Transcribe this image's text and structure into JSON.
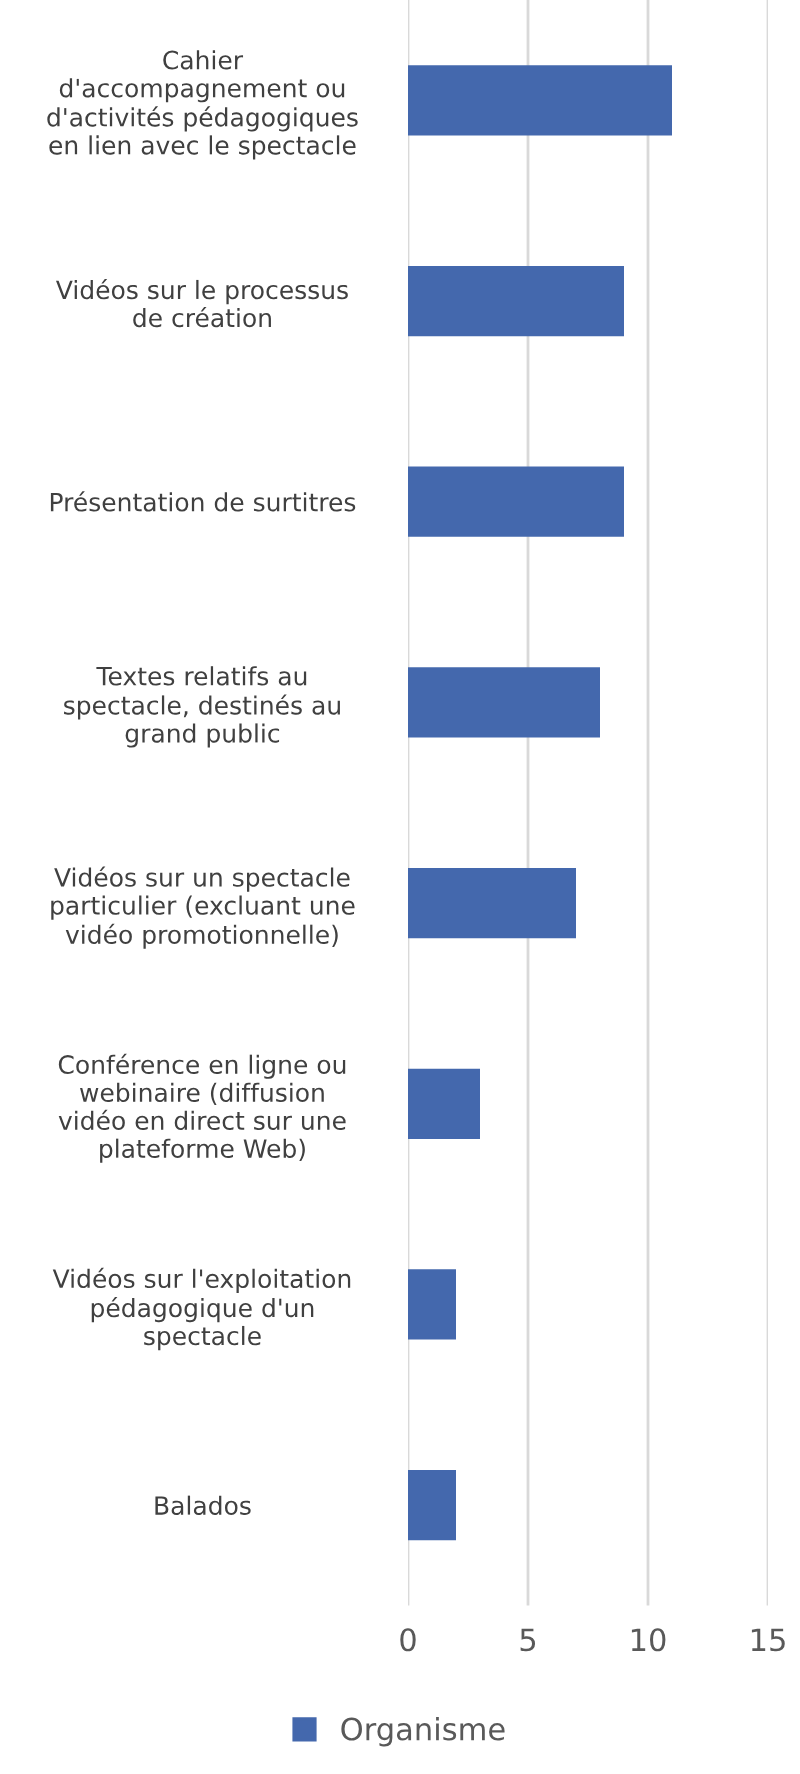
{
  "chart_data": {
    "type": "bar",
    "orientation": "horizontal",
    "categories": [
      "Cahier\nd'accompagnement ou\nd'activités pédagogiques\nen lien avec le spectacle",
      "Vidéos sur le processus\nde création",
      "Présentation de surtitres",
      "Textes relatifs au\nspectacle, destinés au\ngrand public",
      "Vidéos sur un spectacle\nparticulier (excluant une\nvidéo promotionnelle)",
      "Conférence en ligne ou\nwebinaire (diffusion\nvidéo en direct sur une\nplateforme Web)",
      "Vidéos sur l'exploitation\npédagogique d'un\nspectacle",
      "Balados"
    ],
    "series": [
      {
        "name": "Organisme",
        "color": "#4468ad",
        "values": [
          11,
          9,
          9,
          8,
          7,
          3,
          2,
          2
        ]
      }
    ],
    "xlim": [
      0,
      15
    ],
    "xticks": [
      0,
      5,
      10,
      15
    ],
    "grid": "x",
    "legend": "bottom"
  }
}
